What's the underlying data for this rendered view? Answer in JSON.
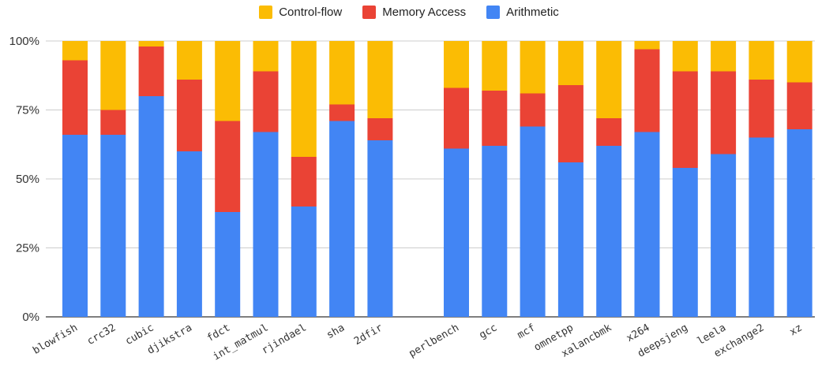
{
  "chart_data": {
    "type": "bar",
    "stacked": true,
    "legend_position": "top-center",
    "grid": true,
    "ylim": [
      0,
      100
    ],
    "y_ticks": [
      "0%",
      "25%",
      "50%",
      "75%",
      "100%"
    ],
    "groups": [
      [
        "blowfish",
        "crc32",
        "cubic",
        "djikstra",
        "fdct",
        "int_matmul",
        "rjindael",
        "sha",
        "2dfir"
      ],
      [
        "perlbench",
        "gcc",
        "mcf",
        "omnetpp",
        "xalancbmk",
        "x264",
        "deepsjeng",
        "leela",
        "exchange2",
        "xz"
      ]
    ],
    "categories": [
      "blowfish",
      "crc32",
      "cubic",
      "djikstra",
      "fdct",
      "int_matmul",
      "rjindael",
      "sha",
      "2dfir",
      "perlbench",
      "gcc",
      "mcf",
      "omnetpp",
      "xalancbmk",
      "x264",
      "deepsjeng",
      "leela",
      "exchange2",
      "xz"
    ],
    "series": [
      {
        "name": "Arithmetic",
        "color": "#4285F4",
        "values": [
          66,
          66,
          80,
          60,
          38,
          67,
          40,
          71,
          64,
          61,
          62,
          69,
          56,
          62,
          67,
          54,
          59,
          65,
          68
        ]
      },
      {
        "name": "Memory Access",
        "color": "#EA4335",
        "values": [
          27,
          9,
          18,
          26,
          33,
          22,
          18,
          6,
          8,
          22,
          20,
          12,
          28,
          10,
          30,
          35,
          30,
          21,
          17
        ]
      },
      {
        "name": "Control-flow",
        "color": "#FBBC04",
        "values": [
          7,
          25,
          2,
          14,
          29,
          11,
          42,
          23,
          28,
          17,
          18,
          19,
          16,
          28,
          3,
          11,
          11,
          14,
          15
        ]
      }
    ]
  },
  "legend": {
    "control_flow": "Control-flow",
    "memory_access": "Memory Access",
    "arithmetic": "Arithmetic"
  }
}
